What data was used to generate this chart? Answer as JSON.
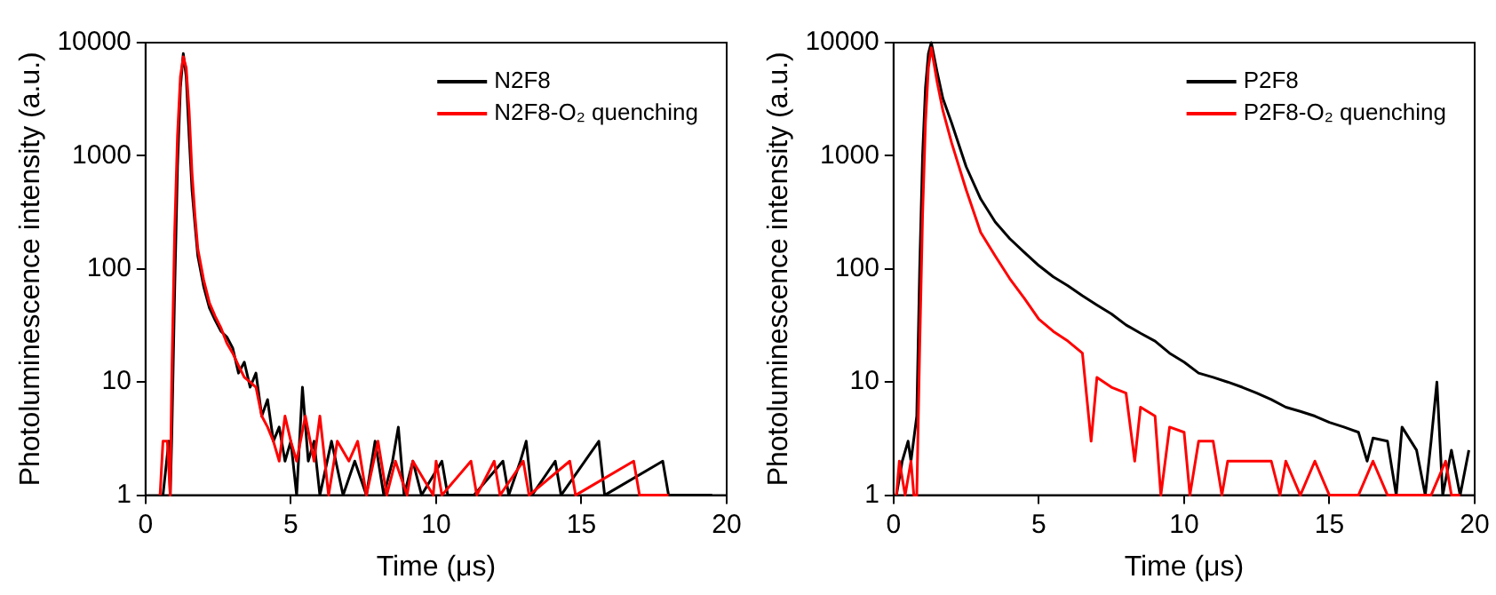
{
  "chart_data": [
    {
      "type": "line",
      "xlabel": "Time (μs)",
      "ylabel": "Photoluminescence intensity (a.u.)",
      "xlim": [
        0,
        20
      ],
      "xticks": [
        0,
        5,
        10,
        15,
        20
      ],
      "ylim": [
        1,
        10000
      ],
      "yticks": [
        1,
        10,
        100,
        1000,
        10000
      ],
      "log": "y",
      "grid": false,
      "legend": "top right",
      "marker": "none",
      "line_style": "solid",
      "series": [
        {
          "name": "N2F8",
          "color": "#000000",
          "x": [
            0.6,
            0.8,
            0.85,
            0.9,
            1.0,
            1.1,
            1.2,
            1.3,
            1.4,
            1.5,
            1.6,
            1.7,
            1.8,
            2.0,
            2.2,
            2.4,
            2.6,
            2.8,
            3.0,
            3.2,
            3.4,
            3.6,
            3.8,
            4.0,
            4.2,
            4.4,
            4.6,
            4.8,
            5.0,
            5.2,
            5.4,
            5.6,
            5.8,
            6.0,
            6.4,
            6.8,
            7.2,
            7.6,
            7.9,
            8.2,
            8.5,
            8.7,
            8.9,
            9.2,
            9.5,
            10.2,
            10.4,
            11.3,
            12.3,
            12.5,
            12.9,
            13.1,
            13.3,
            14.1,
            14.3,
            15.6,
            15.8,
            17.8,
            18.0,
            19.5
          ],
          "values": [
            1,
            3,
            1,
            3,
            60,
            800,
            4000,
            8000,
            5000,
            1500,
            500,
            250,
            130,
            70,
            45,
            35,
            28,
            25,
            20,
            12,
            15,
            9,
            12,
            5,
            7,
            3,
            4,
            2,
            3,
            1,
            9,
            2,
            3,
            1,
            3,
            1,
            2,
            1,
            3,
            1,
            2,
            4,
            1,
            2,
            1,
            2,
            1,
            1,
            2,
            1,
            2,
            3,
            1,
            2,
            1,
            3,
            1,
            2,
            1,
            1
          ]
        },
        {
          "name": "N2F8-O₂ quenching",
          "color": "#ff0000",
          "x": [
            0.5,
            0.6,
            0.75,
            0.85,
            0.9,
            1.0,
            1.1,
            1.2,
            1.3,
            1.4,
            1.5,
            1.6,
            1.7,
            1.8,
            2.0,
            2.2,
            2.4,
            2.6,
            2.8,
            3.0,
            3.2,
            3.4,
            3.6,
            3.8,
            4.0,
            4.2,
            4.4,
            4.6,
            4.8,
            5.0,
            5.2,
            5.5,
            5.8,
            6.0,
            6.3,
            6.6,
            7.0,
            7.3,
            7.6,
            8.0,
            8.3,
            8.6,
            9.0,
            9.2,
            9.9,
            10.0,
            10.2,
            11.2,
            11.4,
            12.0,
            12.2,
            13.0,
            13.2,
            14.6,
            14.8,
            16.8,
            17.0,
            18.0
          ],
          "values": [
            1,
            3,
            3,
            1,
            10,
            200,
            1500,
            5000,
            7500,
            6000,
            2500,
            700,
            300,
            150,
            80,
            50,
            38,
            30,
            22,
            18,
            14,
            11,
            10,
            9,
            5,
            4,
            3,
            2,
            5,
            3,
            2,
            5,
            2,
            5,
            1,
            3,
            2,
            3,
            1,
            3,
            1,
            2,
            1,
            2,
            1,
            2,
            1,
            2,
            1,
            2,
            1,
            2,
            1,
            2,
            1,
            2,
            1,
            1
          ]
        }
      ]
    },
    {
      "type": "line",
      "xlabel": "Time (μs)",
      "ylabel": "Photoluminescence intensity (a.u.)",
      "xlim": [
        0,
        20
      ],
      "xticks": [
        0,
        5,
        10,
        15,
        20
      ],
      "ylim": [
        1,
        10000
      ],
      "yticks": [
        1,
        10,
        100,
        1000,
        10000
      ],
      "log": "y",
      "grid": false,
      "legend": "top right",
      "marker": "none",
      "line_style": "solid",
      "series": [
        {
          "name": "P2F8",
          "color": "#000000",
          "x": [
            0.1,
            0.3,
            0.5,
            0.6,
            0.8,
            0.9,
            1.0,
            1.1,
            1.2,
            1.3,
            1.5,
            1.7,
            2.0,
            2.5,
            3.0,
            3.5,
            4.0,
            4.5,
            5.0,
            5.5,
            6.0,
            6.5,
            7.0,
            7.5,
            8.0,
            8.5,
            9.0,
            9.5,
            10.0,
            10.5,
            11.0,
            11.5,
            12.0,
            12.5,
            13.0,
            13.5,
            14.0,
            14.5,
            15.0,
            15.5,
            16.0,
            16.3,
            16.5,
            17.0,
            17.3,
            17.5,
            18.0,
            18.3,
            18.5,
            18.7,
            18.9,
            19.2,
            19.5,
            19.8
          ],
          "values": [
            1,
            2,
            3,
            2,
            5,
            100,
            1000,
            4000,
            8000,
            10000,
            5500,
            3200,
            1950,
            800,
            415,
            260,
            185,
            140,
            107,
            85,
            71,
            58,
            48,
            40,
            32,
            27,
            23,
            18,
            15,
            12,
            11,
            10,
            9,
            8,
            7,
            6,
            5.5,
            5,
            4.4,
            4,
            3.6,
            2,
            3.2,
            3,
            1,
            4,
            2.5,
            1,
            3,
            10,
            1,
            2.5,
            1,
            2.5
          ]
        },
        {
          "name": "P2F8-O₂ quenching",
          "color": "#ff0000",
          "x": [
            0.1,
            0.2,
            0.4,
            0.6,
            0.7,
            0.8,
            0.9,
            1.0,
            1.1,
            1.2,
            1.3,
            1.5,
            1.7,
            2.0,
            2.5,
            3.0,
            3.5,
            4.0,
            4.5,
            5.0,
            5.5,
            6.0,
            6.5,
            6.8,
            7.0,
            7.5,
            8.0,
            8.3,
            8.5,
            9.0,
            9.2,
            9.5,
            10.0,
            10.2,
            10.5,
            11.0,
            11.3,
            11.5,
            12.0,
            12.5,
            13.0,
            13.3,
            13.5,
            14.0,
            14.5,
            15.0,
            15.5,
            16.0,
            16.5,
            17.0,
            17.5,
            18.0,
            18.5,
            19.0,
            19.2,
            19.5
          ],
          "values": [
            1,
            2,
            1,
            2,
            1,
            1,
            20,
            300,
            2000,
            6000,
            9000,
            4500,
            2500,
            1300,
            500,
            210,
            130,
            82,
            55,
            36,
            28,
            23,
            18,
            3,
            11,
            9,
            8,
            2,
            6,
            5,
            1,
            4,
            3.6,
            1,
            3,
            3,
            1,
            2,
            2,
            2,
            2,
            1,
            2,
            1,
            2,
            1,
            1,
            1,
            2,
            1,
            1,
            1,
            1,
            2,
            1,
            1
          ]
        }
      ]
    }
  ]
}
